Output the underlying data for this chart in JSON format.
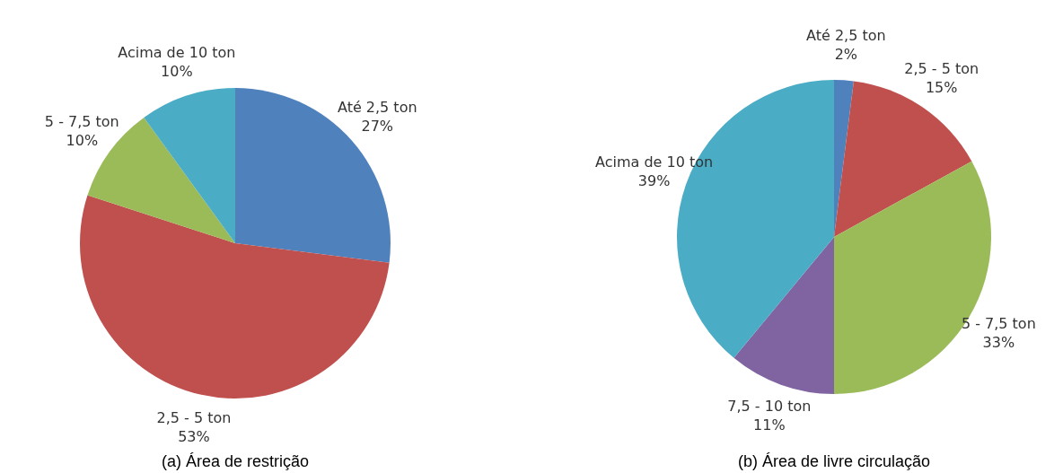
{
  "chart_data": [
    {
      "type": "pie",
      "title": "(a) Área de restrição",
      "categories": [
        "Até 2,5 ton",
        "2,5 - 5 ton",
        "5 - 7,5 ton",
        "Acima de 10 ton"
      ],
      "values": [
        27,
        53,
        10,
        10
      ],
      "value_labels": [
        "27%",
        "53%",
        "10%",
        "10%"
      ],
      "colors": [
        "#4f81bd",
        "#c0504d",
        "#9bbb59",
        "#4bacc6"
      ]
    },
    {
      "type": "pie",
      "title": "(b) Área de livre circulação",
      "categories": [
        "Até 2,5 ton",
        "2,5 - 5 ton",
        "5 - 7,5 ton",
        "7,5 - 10 ton",
        "Acima de 10 ton"
      ],
      "values": [
        2,
        15,
        33,
        11,
        39
      ],
      "value_labels": [
        "2%",
        "15%",
        "33%",
        "11%",
        "39%"
      ],
      "colors": [
        "#4f81bd",
        "#c0504d",
        "#9bbb59",
        "#8064a2",
        "#4bacc6"
      ]
    }
  ]
}
